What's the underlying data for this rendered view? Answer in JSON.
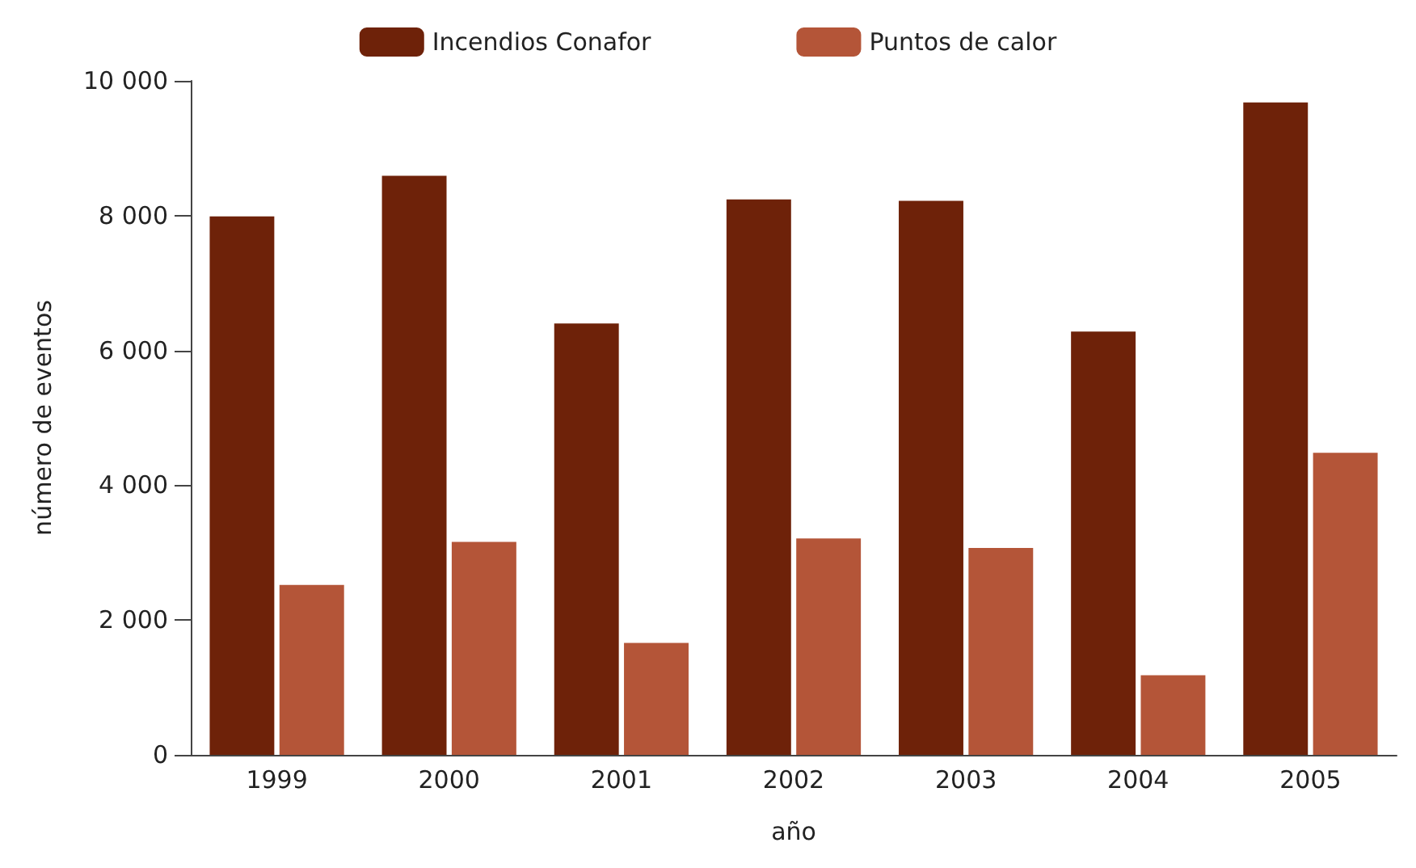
{
  "chart_data": {
    "type": "bar",
    "xlabel": "año",
    "ylabel": "número de eventos",
    "categories": [
      "1999",
      "2000",
      "2001",
      "2002",
      "2003",
      "2004",
      "2005"
    ],
    "series": [
      {
        "name": "Incendios Conafor",
        "color": "#6e2209",
        "values": [
          7990,
          8590,
          6400,
          8240,
          8220,
          6280,
          9680
        ]
      },
      {
        "name": "Puntos de calor",
        "color": "#b45538",
        "values": [
          2520,
          3160,
          1660,
          3210,
          3070,
          1180,
          4480
        ]
      }
    ],
    "ylim": [
      0,
      10000
    ],
    "yticks": [
      {
        "value": 0,
        "label": "0"
      },
      {
        "value": 2000,
        "label": "2 000"
      },
      {
        "value": 4000,
        "label": "4 000"
      },
      {
        "value": 6000,
        "label": "6 000"
      },
      {
        "value": 8000,
        "label": "8 000"
      },
      {
        "value": 10000,
        "label": "10 000"
      }
    ],
    "grid": false,
    "legend": "top"
  }
}
